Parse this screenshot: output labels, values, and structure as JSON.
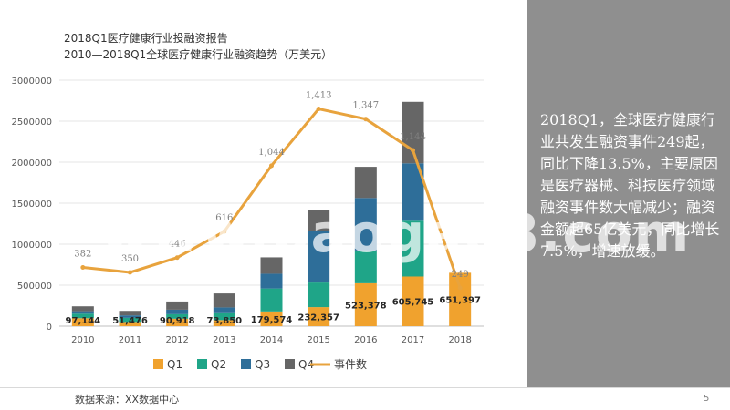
{
  "page": {
    "source": "数据来源：XX数据中心",
    "page_number": "5",
    "watermark": "www.baogao8.com",
    "summary": "2018Q1，全球医疗健康行业共发生融资事件249起，同比下降13.5%，主要原因是医疗器械、科技医疗领域融资事件数大幅减少；融资金额超65亿美元，同比增长7.5%，增速放缓。"
  },
  "colors": {
    "q1": "#f0a22e",
    "q2": "#1fa588",
    "q3": "#2e6e99",
    "q4": "#666666",
    "line": "#e8a33d",
    "panel": "#8f8f8f"
  },
  "chart_data": {
    "type": "bar",
    "stacked": true,
    "title": "2018Q1医疗健康行业投融资报告",
    "subtitle": "2010—2018Q1全球医疗健康行业融资趋势（万美元）",
    "categories": [
      "2010",
      "2011",
      "2012",
      "2013",
      "2014",
      "2015",
      "2016",
      "2017",
      "2018"
    ],
    "ylim": [
      0,
      3000000
    ],
    "yticks": [
      "0",
      "500000",
      "1000000",
      "1500000",
      "2000000",
      "2500000",
      "3000000"
    ],
    "series": [
      {
        "name": "Q1",
        "values": [
          97144,
          51476,
          90918,
          73850,
          179574,
          232357,
          523378,
          605745,
          651397
        ]
      },
      {
        "name": "Q2",
        "values": [
          55000,
          50000,
          55000,
          95000,
          280000,
          300000,
          400000,
          680000,
          0
        ]
      },
      {
        "name": "Q3",
        "values": [
          30000,
          30000,
          55000,
          60000,
          180000,
          630000,
          640000,
          700000,
          0
        ]
      },
      {
        "name": "Q4",
        "values": [
          60000,
          55000,
          100000,
          170000,
          200000,
          250000,
          380000,
          750000,
          0
        ]
      }
    ],
    "bar_labels": [
      "97,144",
      "51,476",
      "90,918",
      "73,850",
      "179,574",
      "232,357",
      "523,378",
      "605,745",
      "651,397"
    ],
    "line_series": {
      "name": "事件数",
      "values": [
        382,
        350,
        446,
        616,
        1044,
        1413,
        1347,
        1144,
        249
      ],
      "labels": [
        "382",
        "350",
        "446",
        "616",
        "1,044",
        "1,413",
        "1,347",
        "1,144",
        "249"
      ],
      "ylim": [
        0,
        1600
      ]
    },
    "legend": {
      "position": "bottom",
      "entries": [
        "Q1",
        "Q2",
        "Q3",
        "Q4",
        "事件数"
      ]
    }
  }
}
